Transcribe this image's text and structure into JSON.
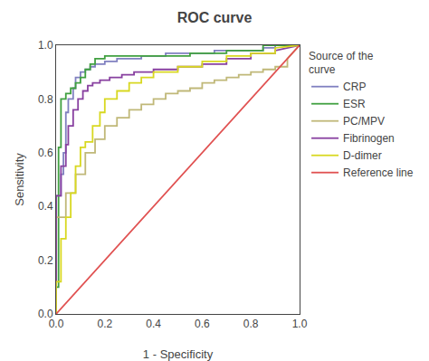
{
  "chart_data": {
    "type": "line",
    "title": "ROC curve",
    "x_label": "1 - Specificity",
    "y_label": "Sensitivity",
    "legend_title": "Source of the\ncurve",
    "legend": "right",
    "grid": false,
    "xlim": [
      0.0,
      1.0
    ],
    "ylim": [
      0.0,
      1.0
    ],
    "xticks": [
      {
        "value": 0.0,
        "label": "0.0"
      },
      0.2,
      0.4,
      0.6,
      0.8,
      {
        "value": 1.0,
        "label": "1.0"
      }
    ],
    "yticks": [
      {
        "value": 0.0,
        "label": "0.0"
      },
      0.2,
      0.4,
      0.6,
      0.8,
      {
        "value": 1.0,
        "label": "1.0"
      }
    ],
    "series": [
      {
        "name": "CRP",
        "color": "#8080c0",
        "x": [
          0.0,
          0.0,
          0.02,
          0.02,
          0.03,
          0.03,
          0.04,
          0.04,
          0.05,
          0.05,
          0.07,
          0.07,
          0.08,
          0.08,
          0.1,
          0.1,
          0.12,
          0.12,
          0.14,
          0.14,
          0.16,
          0.16,
          0.2,
          0.2,
          0.25,
          0.25,
          0.35,
          0.35,
          0.45,
          0.45,
          0.55,
          0.55,
          0.65,
          0.65,
          0.75,
          0.75,
          0.85,
          0.85,
          0.9,
          0.9,
          1.0
        ],
        "values": [
          0.0,
          0.44,
          0.44,
          0.52,
          0.52,
          0.6,
          0.6,
          0.75,
          0.75,
          0.8,
          0.8,
          0.84,
          0.84,
          0.88,
          0.88,
          0.9,
          0.9,
          0.91,
          0.91,
          0.92,
          0.92,
          0.93,
          0.93,
          0.94,
          0.94,
          0.95,
          0.95,
          0.96,
          0.96,
          0.97,
          0.97,
          0.97,
          0.97,
          0.98,
          0.98,
          0.98,
          0.98,
          0.99,
          0.99,
          1.0,
          1.0
        ]
      },
      {
        "name": "ESR",
        "color": "#40a040",
        "x": [
          0.0,
          0.0,
          0.01,
          0.01,
          0.02,
          0.02,
          0.04,
          0.04,
          0.06,
          0.06,
          0.08,
          0.08,
          0.1,
          0.1,
          0.12,
          0.12,
          0.14,
          0.14,
          0.16,
          0.16,
          0.2,
          0.2,
          0.5,
          0.5,
          0.55,
          0.55,
          0.6,
          0.6,
          0.7,
          0.7,
          0.85,
          0.85,
          1.0
        ],
        "values": [
          0.0,
          0.1,
          0.1,
          0.62,
          0.62,
          0.8,
          0.8,
          0.82,
          0.82,
          0.84,
          0.84,
          0.86,
          0.86,
          0.88,
          0.88,
          0.91,
          0.91,
          0.93,
          0.93,
          0.95,
          0.95,
          0.96,
          0.96,
          0.96,
          0.96,
          0.97,
          0.97,
          0.97,
          0.97,
          0.98,
          0.98,
          1.0,
          1.0
        ]
      },
      {
        "name": "PC/MPV",
        "color": "#c0b878",
        "x": [
          0.0,
          0.0,
          0.04,
          0.04,
          0.08,
          0.08,
          0.12,
          0.12,
          0.16,
          0.16,
          0.2,
          0.2,
          0.25,
          0.25,
          0.3,
          0.3,
          0.35,
          0.35,
          0.4,
          0.4,
          0.45,
          0.45,
          0.5,
          0.5,
          0.55,
          0.55,
          0.6,
          0.6,
          0.65,
          0.65,
          0.7,
          0.7,
          0.75,
          0.75,
          0.8,
          0.8,
          0.85,
          0.85,
          0.9,
          0.9,
          0.95,
          0.95,
          1.0
        ],
        "values": [
          0.0,
          0.36,
          0.36,
          0.45,
          0.45,
          0.52,
          0.52,
          0.6,
          0.6,
          0.65,
          0.65,
          0.7,
          0.7,
          0.73,
          0.73,
          0.76,
          0.76,
          0.78,
          0.78,
          0.8,
          0.8,
          0.82,
          0.82,
          0.83,
          0.83,
          0.84,
          0.84,
          0.86,
          0.86,
          0.87,
          0.87,
          0.88,
          0.88,
          0.89,
          0.89,
          0.9,
          0.9,
          0.91,
          0.91,
          0.92,
          0.92,
          0.95,
          1.0
        ]
      },
      {
        "name": "Fibrinogen",
        "color": "#8840a0",
        "x": [
          0.0,
          0.0,
          0.02,
          0.02,
          0.04,
          0.04,
          0.05,
          0.05,
          0.07,
          0.07,
          0.09,
          0.09,
          0.11,
          0.11,
          0.13,
          0.13,
          0.15,
          0.15,
          0.18,
          0.18,
          0.22,
          0.22,
          0.27,
          0.27,
          0.32,
          0.32,
          0.4,
          0.4,
          0.5,
          0.5,
          0.6,
          0.6,
          0.7,
          0.7,
          0.8,
          0.8,
          0.9,
          0.9,
          1.0
        ],
        "values": [
          0.0,
          0.44,
          0.44,
          0.55,
          0.55,
          0.63,
          0.63,
          0.7,
          0.7,
          0.76,
          0.76,
          0.8,
          0.8,
          0.83,
          0.83,
          0.85,
          0.85,
          0.86,
          0.86,
          0.87,
          0.87,
          0.88,
          0.88,
          0.89,
          0.89,
          0.9,
          0.9,
          0.91,
          0.91,
          0.92,
          0.92,
          0.93,
          0.93,
          0.95,
          0.95,
          0.97,
          0.97,
          0.98,
          1.0
        ]
      },
      {
        "name": "D-dimer",
        "color": "#d8d820",
        "x": [
          0.0,
          0.0,
          0.02,
          0.02,
          0.04,
          0.04,
          0.06,
          0.06,
          0.08,
          0.08,
          0.1,
          0.1,
          0.12,
          0.12,
          0.15,
          0.15,
          0.18,
          0.18,
          0.2,
          0.2,
          0.25,
          0.25,
          0.3,
          0.3,
          0.35,
          0.35,
          0.4,
          0.4,
          0.5,
          0.5,
          0.6,
          0.6,
          0.7,
          0.7,
          0.8,
          0.8,
          0.9,
          0.9,
          1.0
        ],
        "values": [
          0.0,
          0.12,
          0.12,
          0.28,
          0.28,
          0.36,
          0.36,
          0.45,
          0.45,
          0.55,
          0.55,
          0.62,
          0.62,
          0.64,
          0.64,
          0.7,
          0.7,
          0.75,
          0.75,
          0.8,
          0.8,
          0.83,
          0.83,
          0.86,
          0.86,
          0.88,
          0.88,
          0.9,
          0.9,
          0.92,
          0.92,
          0.94,
          0.94,
          0.96,
          0.96,
          0.97,
          0.97,
          0.99,
          1.0
        ]
      },
      {
        "name": "Reference line",
        "color": "#e05050",
        "x": [
          0.0,
          1.0
        ],
        "values": [
          0.0,
          1.0
        ]
      }
    ]
  }
}
